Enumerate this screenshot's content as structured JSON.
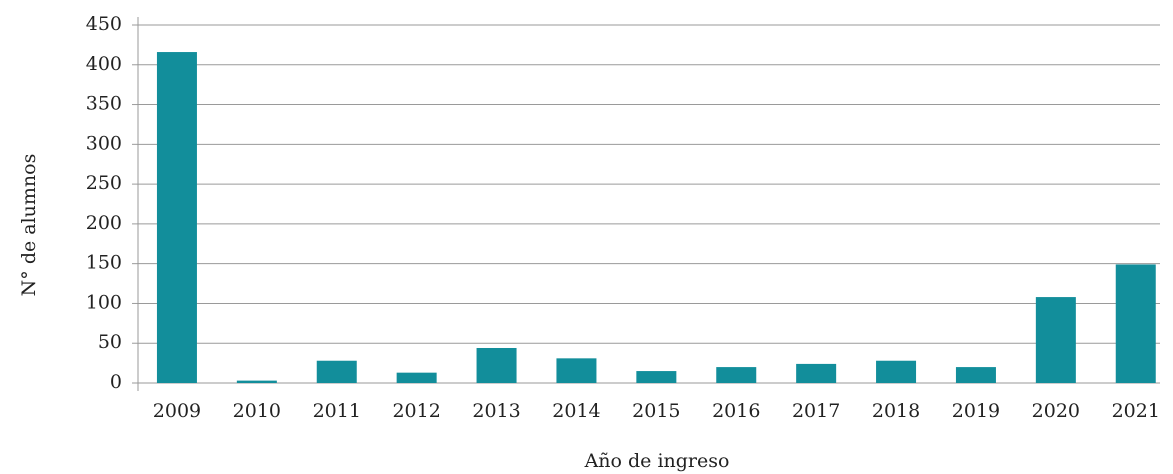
{
  "chart_data": {
    "type": "bar",
    "categories": [
      "2009",
      "2010",
      "2011",
      "2012",
      "2013",
      "2014",
      "2015",
      "2016",
      "2017",
      "2018",
      "2019",
      "2020",
      "2021"
    ],
    "values": [
      416,
      3,
      28,
      13,
      44,
      31,
      15,
      20,
      24,
      28,
      20,
      108,
      149
    ],
    "color": "#128e9b",
    "xlabel": "Año de ingreso",
    "ylabel": "N° de alumnos",
    "ylim": [
      0,
      450
    ],
    "yticks": [
      0,
      50,
      100,
      150,
      200,
      250,
      300,
      350,
      400,
      450
    ],
    "grid": true
  }
}
